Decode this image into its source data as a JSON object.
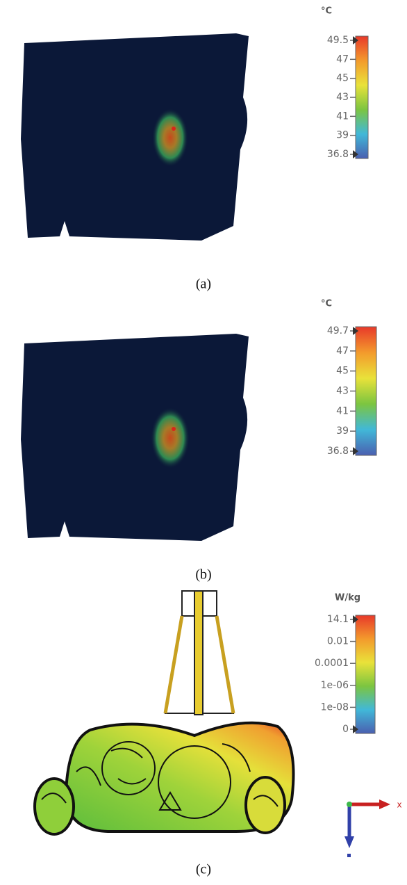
{
  "panels": [
    {
      "unit": "°C",
      "ticks": [
        49.5,
        47,
        45,
        43,
        41,
        39,
        36.8
      ],
      "caption": "(a)"
    },
    {
      "unit": "°C",
      "ticks": [
        49.7,
        47,
        45,
        43,
        41,
        39,
        36.8
      ],
      "caption": "(b)"
    },
    {
      "unit": "W/kg",
      "ticks": [
        14.1,
        0.01,
        0.0001,
        "1e-06",
        "1e-08",
        0
      ],
      "caption": "(c)",
      "axis_label": "x"
    }
  ]
}
